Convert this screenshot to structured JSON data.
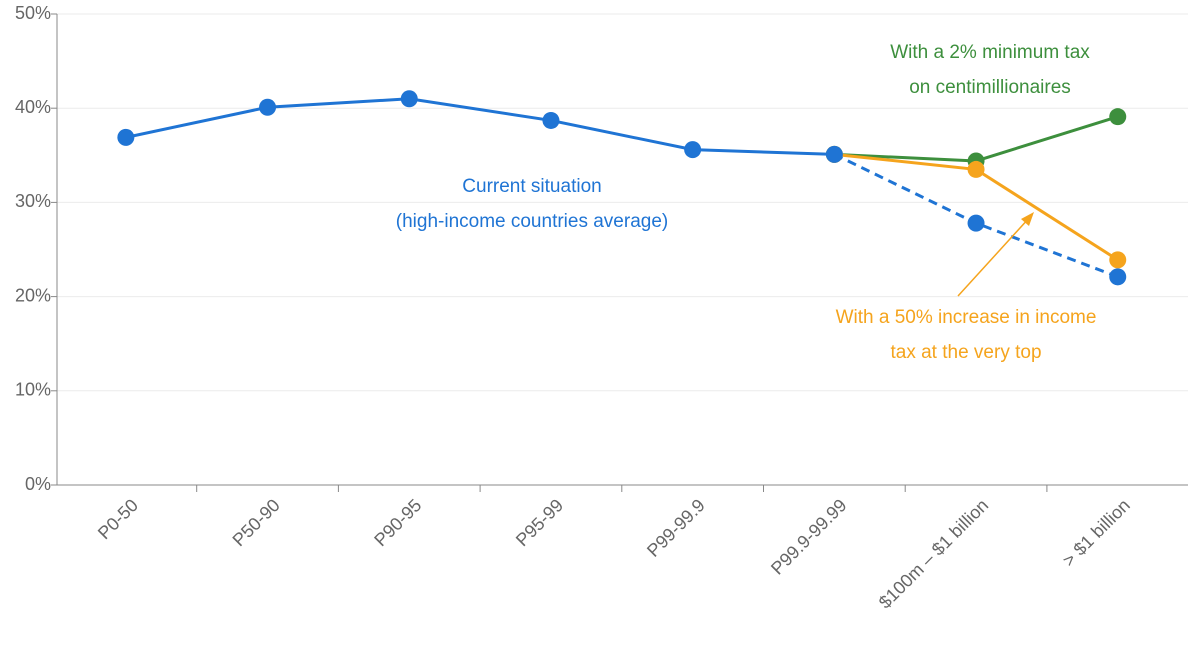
{
  "chart_data": {
    "type": "line",
    "categories": [
      "P0-50",
      "P50-90",
      "P90-95",
      "P95-99",
      "P99-99.9",
      "P99.9-99.99",
      "$100m – $1 billion",
      "> $1 billion"
    ],
    "series": [
      {
        "name": [
          "With a 2% minimum tax",
          "on centimillionaires"
        ],
        "color": "#3d8f3d",
        "values": [
          null,
          null,
          null,
          null,
          null,
          35.1,
          34.4,
          39.1
        ]
      },
      {
        "name": [
          "With a 50% increase in income",
          "tax at the very top"
        ],
        "color": "#f5a41d",
        "values": [
          null,
          null,
          null,
          null,
          null,
          35.1,
          33.5,
          23.9
        ]
      },
      {
        "name": [
          "Current situation",
          "(high-income countries average)"
        ],
        "color": "#1f74d4",
        "values": [
          36.9,
          40.1,
          41.0,
          38.7,
          35.6,
          35.1,
          27.8,
          22.1
        ],
        "dashed_from": 5
      }
    ],
    "ylim": [
      0,
      50
    ],
    "yticks": [
      {
        "value": 0,
        "label": "0%"
      },
      {
        "value": 10,
        "label": "10%"
      },
      {
        "value": 20,
        "label": "20%"
      },
      {
        "value": 30,
        "label": "30%"
      },
      {
        "value": 40,
        "label": "40%"
      },
      {
        "value": 50,
        "label": "50%"
      }
    ],
    "grid": true
  }
}
